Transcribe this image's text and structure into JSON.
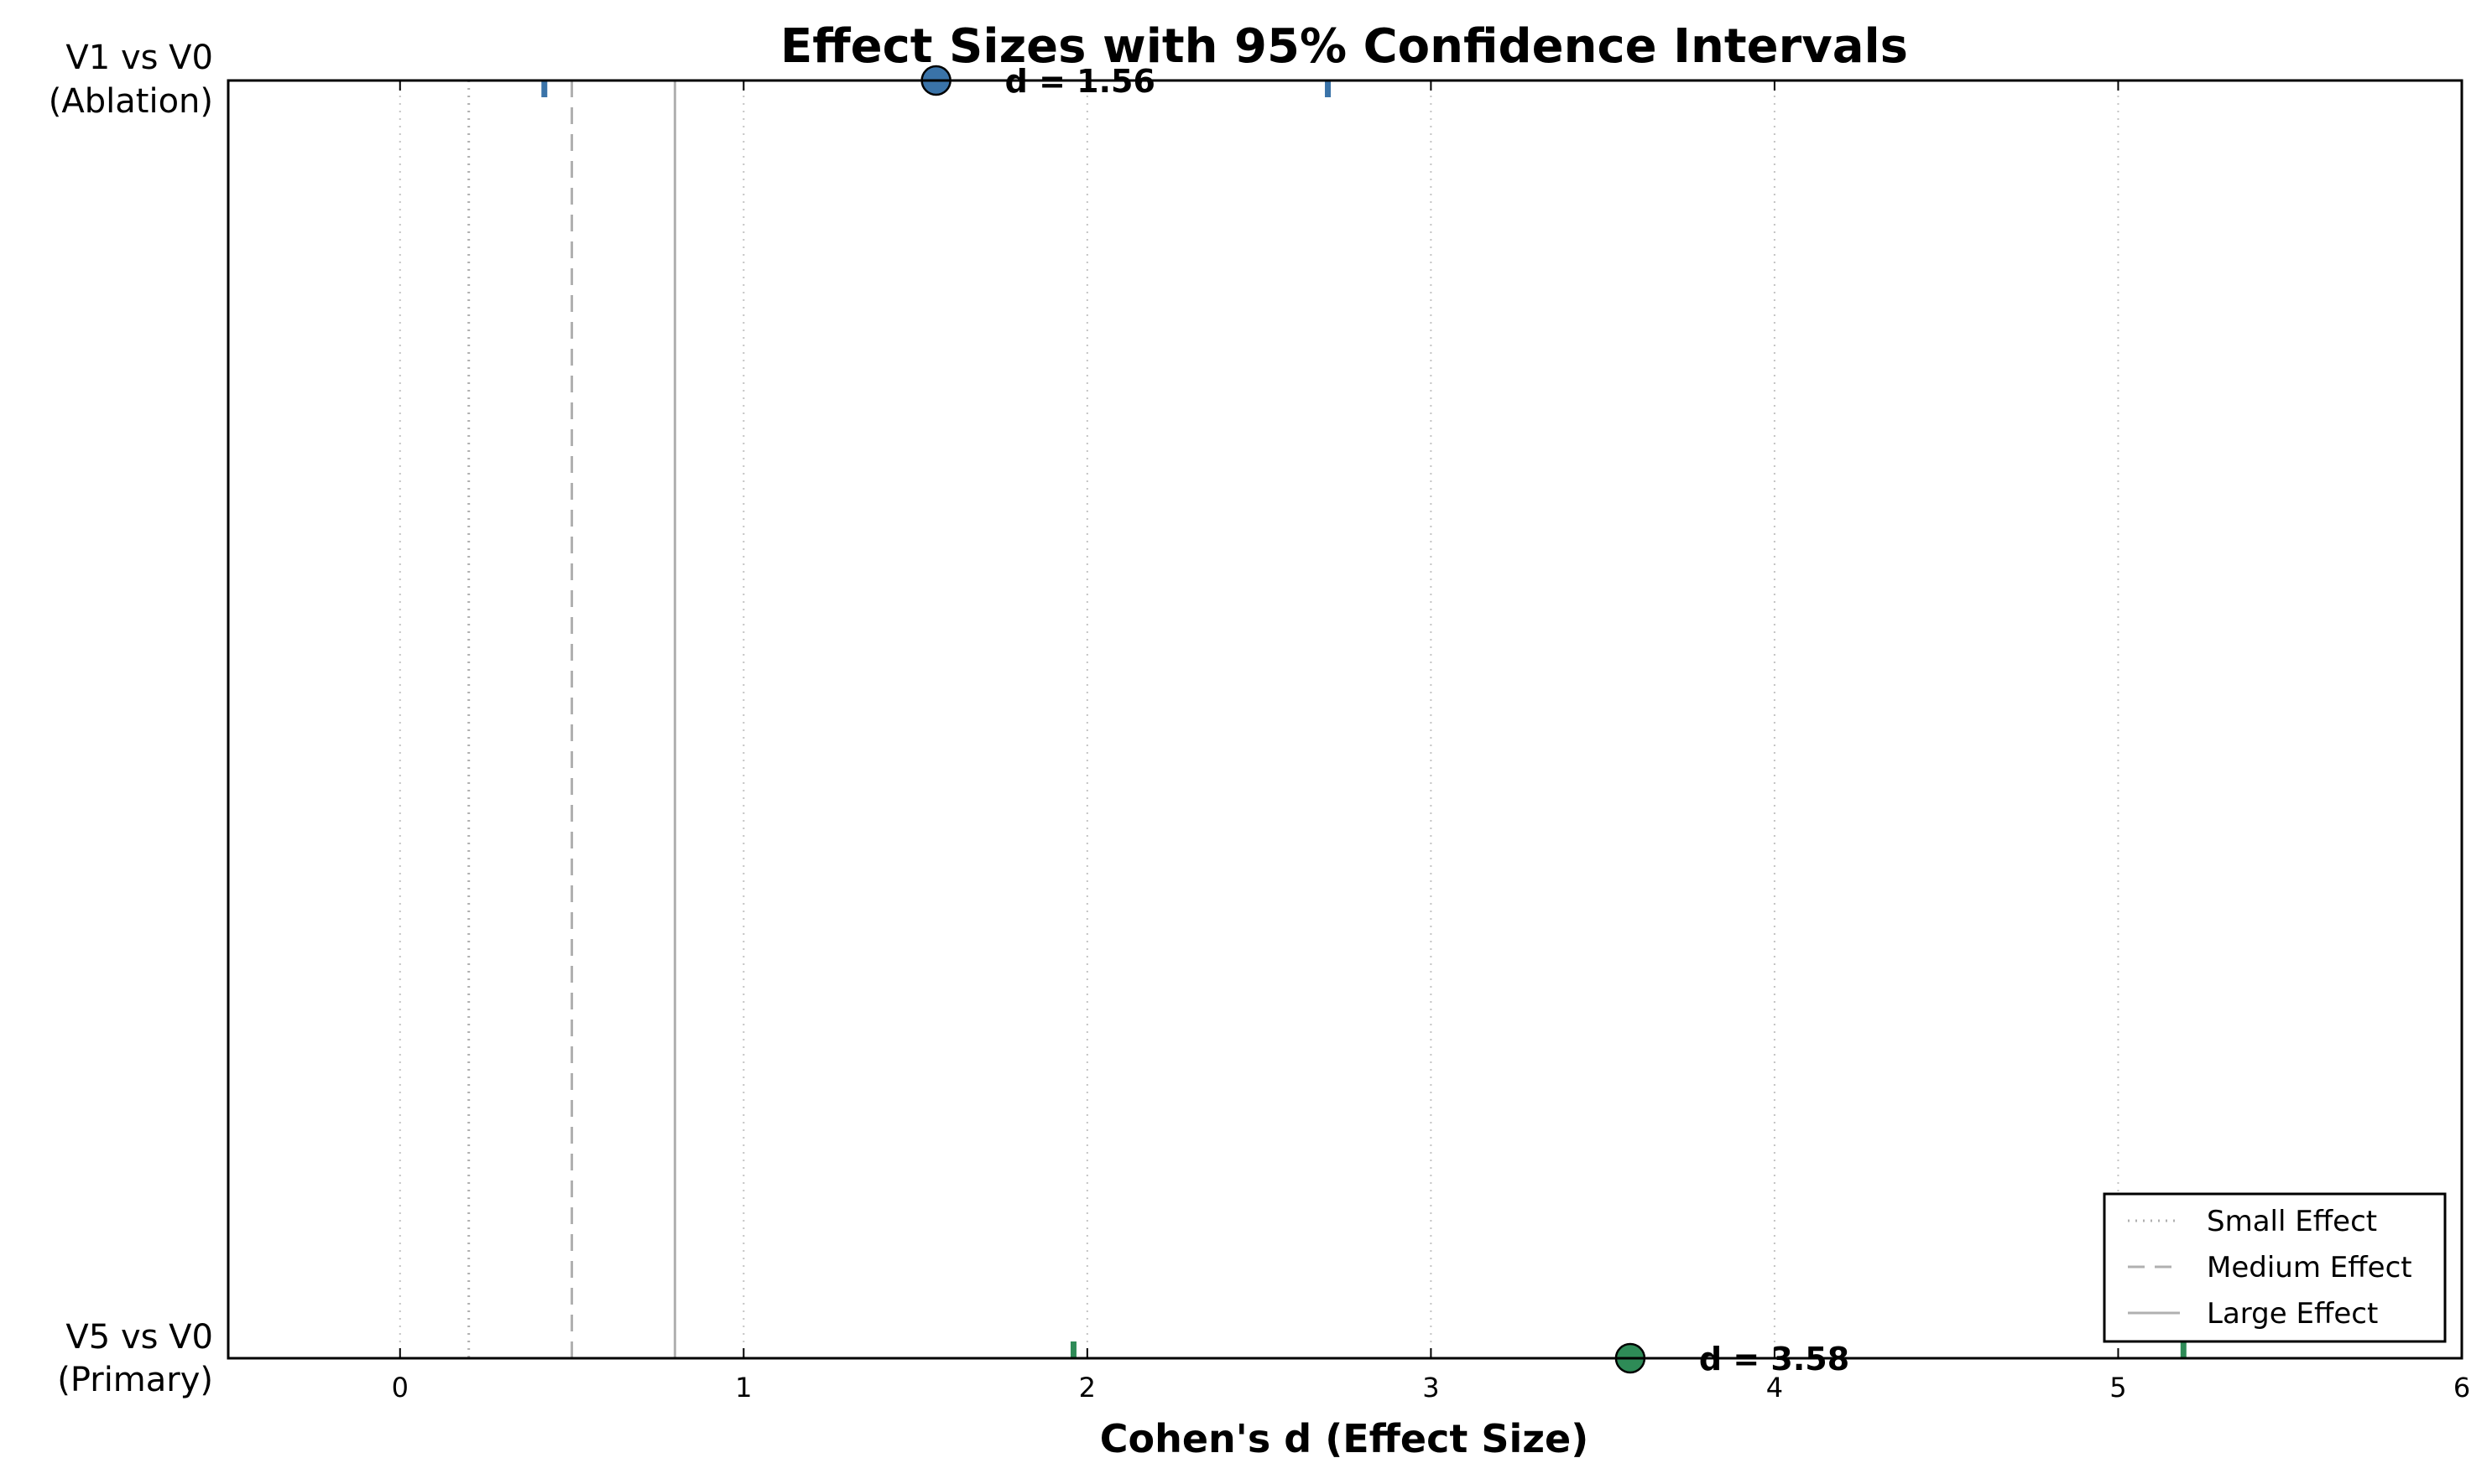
{
  "chart_data": {
    "type": "scatter",
    "title": "Effect Sizes with 95% Confidence Intervals",
    "xlabel": "Cohen's d (Effect Size)",
    "ylabel": "",
    "xlim": [
      -0.5,
      6
    ],
    "xticks": [
      0,
      1,
      2,
      3,
      4,
      5,
      6
    ],
    "grid": "x, dotted",
    "legend_placement": "bottom-right",
    "categories": [
      {
        "line1": "V1 vs V0",
        "line2": "(Ablation)"
      },
      {
        "line1": "V5 vs V0",
        "line2": "(Primary)"
      }
    ],
    "points": [
      {
        "category": "V1 vs V0 (Ablation)",
        "d": 1.56,
        "ci_low": 0.42,
        "ci_high": 2.7,
        "label": "d = 1.56",
        "color": "#3a73a8"
      },
      {
        "category": "V5 vs V0 (Primary)",
        "d": 3.58,
        "ci_low": 1.96,
        "ci_high": 5.19,
        "label": "d = 3.58",
        "color": "#2e8b57"
      }
    ],
    "reference_lines": [
      {
        "name": "Small Effect",
        "value": 0.2,
        "style": "dotted",
        "color": "#b0b0b0"
      },
      {
        "name": "Medium Effect",
        "value": 0.5,
        "style": "dashed",
        "color": "#b0b0b0"
      },
      {
        "name": "Large Effect",
        "value": 0.8,
        "style": "solid",
        "color": "#b0b0b0"
      }
    ]
  }
}
